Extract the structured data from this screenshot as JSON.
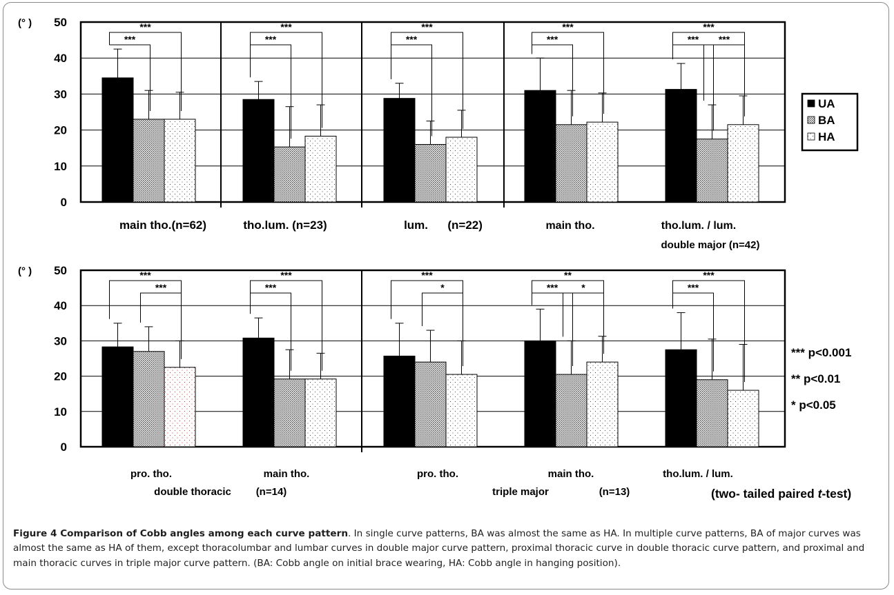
{
  "chart_data": [
    {
      "type": "bar",
      "ylabel": "(° )",
      "ylim": [
        0,
        50
      ],
      "yticks": [
        0,
        10,
        20,
        30,
        40,
        50
      ],
      "grid": true,
      "series": [
        {
          "name": "UA",
          "legend": "UA",
          "color": "#000000",
          "pattern": "solid"
        },
        {
          "name": "BA",
          "legend": "BA",
          "color": "#9a9a9a",
          "pattern": "dense-dots"
        },
        {
          "name": "HA",
          "legend": "HA",
          "color": "#ffffff",
          "pattern": "sparse-dots"
        }
      ],
      "groups": [
        {
          "label": "main tho.(n=62)",
          "values": [
            34.5,
            23,
            23
          ],
          "errors": [
            42.5,
            31,
            30.5
          ],
          "sig": [
            {
              "from": 0,
              "to": 2,
              "text": "***"
            },
            {
              "from": 0,
              "to": 1,
              "text": "***"
            }
          ]
        },
        {
          "label": "tho.lum. (n=23)",
          "values": [
            28.5,
            15.3,
            18.3
          ],
          "errors": [
            33.5,
            26.5,
            27
          ],
          "sig": [
            {
              "from": 0,
              "to": 2,
              "text": "***"
            },
            {
              "from": 0,
              "to": 1,
              "text": "***"
            }
          ]
        },
        {
          "label": "lum.      (n=22)",
          "values": [
            28.8,
            16,
            18
          ],
          "errors": [
            33,
            22.5,
            25.5
          ],
          "sig": [
            {
              "from": 0,
              "to": 2,
              "text": "***"
            },
            {
              "from": 0,
              "to": 1,
              "text": "***"
            }
          ]
        },
        {
          "label": "main tho.",
          "values": [
            31,
            21.5,
            22.2
          ],
          "errors": [
            40,
            31,
            30.3
          ],
          "sig": [
            {
              "from": 0,
              "to": 2,
              "text": "***"
            },
            {
              "from": 0,
              "to": 1,
              "text": "***"
            }
          ]
        },
        {
          "label": "tho.lum. / lum.",
          "values": [
            31.3,
            17.5,
            21.5
          ],
          "errors": [
            38.5,
            27,
            29.5
          ],
          "sig": [
            {
              "from": 0,
              "to": 2,
              "text": "***"
            },
            {
              "from": 0,
              "to": 1,
              "text": "***"
            },
            {
              "from": 1,
              "to": 2,
              "text": "***"
            }
          ]
        }
      ],
      "section_labels": [
        "double major (n=42)"
      ]
    },
    {
      "type": "bar",
      "ylabel": "(° )",
      "ylim": [
        0,
        50
      ],
      "yticks": [
        0,
        10,
        20,
        30,
        40,
        50
      ],
      "grid": true,
      "groups": [
        {
          "label": "pro. tho.",
          "values": [
            28.3,
            27,
            22.5
          ],
          "errors": [
            35,
            34,
            30
          ],
          "sig": [
            {
              "from": 0,
              "to": 2,
              "text": "***"
            },
            {
              "from": 1,
              "to": 2,
              "text": "***"
            }
          ]
        },
        {
          "label": "main tho.",
          "values": [
            30.8,
            19.2,
            19.2
          ],
          "errors": [
            36.5,
            27.5,
            26.5
          ],
          "sig": [
            {
              "from": 0,
              "to": 2,
              "text": "***"
            },
            {
              "from": 0,
              "to": 1,
              "text": "***"
            }
          ]
        },
        {
          "label": "pro. tho.",
          "values": [
            25.7,
            24,
            20.5
          ],
          "errors": [
            35,
            33,
            30
          ],
          "sig": [
            {
              "from": 0,
              "to": 2,
              "text": "***"
            },
            {
              "from": 1,
              "to": 2,
              "text": "*"
            }
          ]
        },
        {
          "label": "main tho.",
          "values": [
            30,
            20.5,
            24
          ],
          "errors": [
            39,
            30,
            31.3
          ],
          "sig": [
            {
              "from": 0,
              "to": 2,
              "text": "**"
            },
            {
              "from": 0,
              "to": 1,
              "text": "***"
            },
            {
              "from": 1,
              "to": 2,
              "text": "*"
            }
          ]
        },
        {
          "label": "tho.lum. / lum.",
          "values": [
            27.5,
            19,
            16
          ],
          "errors": [
            38,
            30.5,
            29
          ],
          "sig": [
            {
              "from": 0,
              "to": 2,
              "text": "***"
            },
            {
              "from": 0,
              "to": 1,
              "text": "***"
            }
          ]
        }
      ],
      "section_labels": [
        "double thoracic",
        "(n=14)",
        "triple major",
        "(n=13)"
      ]
    }
  ],
  "significance_legend": [
    "*** p<0.001",
    "** p<0.01",
    "* p<0.05"
  ],
  "test_note": {
    "pre": "(two- tailed paired ",
    "italic": "t",
    "post": "-test)"
  },
  "caption": {
    "title": "Figure 4 Comparison of Cobb angles among each curve pattern",
    "body": ". In single curve patterns, BA was almost the same as HA. In multiple curve patterns, BA of major curves was almost the same as HA of them, except thoracolumbar and lumbar curves in double major curve pattern, proximal thoracic curve in double thoracic curve pattern, and proximal and main thoracic curves in triple major curve pattern. (BA: Cobb angle on initial brace wearing, HA: Cobb angle in hanging position)."
  }
}
